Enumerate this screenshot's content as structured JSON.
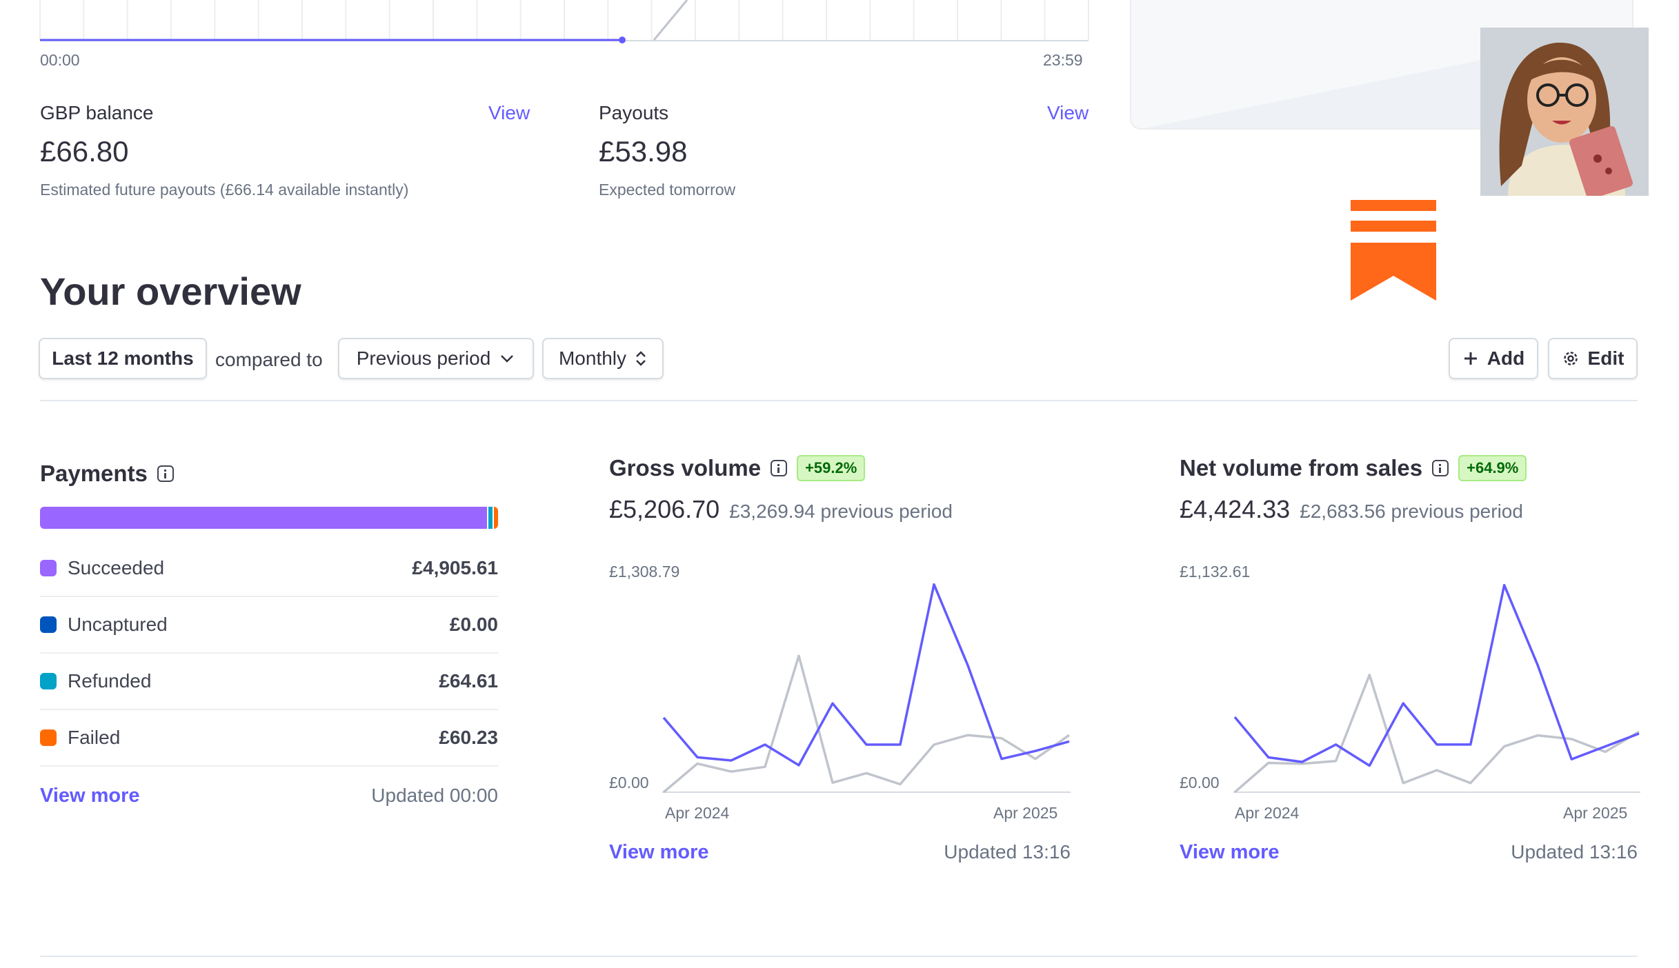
{
  "today": {
    "start_time": "00:00",
    "end_time": "23:59"
  },
  "gbp_balance": {
    "label": "GBP balance",
    "link": "View",
    "amount": "£66.80",
    "sub": "Estimated future payouts (£66.14 available instantly)"
  },
  "payouts": {
    "label": "Payouts",
    "link": "View",
    "amount": "£53.98",
    "sub": "Expected tomorrow"
  },
  "overview": {
    "title": "Your overview",
    "range_button": "Last 12 months",
    "compared_to": "compared to",
    "comparison_button": "Previous period",
    "interval_button": "Monthly",
    "add_button": "Add",
    "edit_button": "Edit"
  },
  "payments": {
    "title": "Payments",
    "rows": [
      {
        "label": "Succeeded",
        "value": "£4,905.61",
        "color": "#9966ff"
      },
      {
        "label": "Uncaptured",
        "value": "£0.00",
        "color": "#0055bc"
      },
      {
        "label": "Refunded",
        "value": "£64.61",
        "color": "#00a2c7"
      },
      {
        "label": "Failed",
        "value": "£60.23",
        "color": "#ff6a00"
      }
    ],
    "bar_shares": [
      4905.61,
      0,
      64.61,
      60.23
    ],
    "view_more": "View more",
    "updated": "Updated 00:00"
  },
  "gross_volume": {
    "title": "Gross volume",
    "badge": "+59.2%",
    "amount": "£5,206.70",
    "previous": "£3,269.94 previous period",
    "y_max_label": "£1,308.79",
    "y_min_label": "£0.00",
    "x_start_label": "Apr 2024",
    "x_end_label": "Apr 2025",
    "view_more": "View more",
    "updated": "Updated 13:16"
  },
  "net_volume": {
    "title": "Net volume from sales",
    "badge": "+64.9%",
    "amount": "£4,424.33",
    "previous": "£2,683.56 previous period",
    "y_max_label": "£1,132.61",
    "y_min_label": "£0.00",
    "x_start_label": "Apr 2024",
    "x_end_label": "Apr 2025",
    "view_more": "View more",
    "updated": "Updated 13:16"
  },
  "colors": {
    "accent": "#635bff",
    "current_series": "#635bff",
    "previous_series": "#c0c4cc",
    "positive_badge": "#d7f7c2",
    "brand_logo": "#ff6719"
  },
  "icons": [
    "info-icon",
    "chevron-down-icon",
    "chevron-updown-icon",
    "plus-icon",
    "gear-icon",
    "bookmark-logo-icon"
  ],
  "chart_data": [
    {
      "type": "line",
      "title": "Gross volume",
      "ylim": [
        0,
        1308.79
      ],
      "x_labels": [
        "Apr 2024",
        "Apr 2025"
      ],
      "series": [
        {
          "values": [
            470,
            220,
            200,
            300,
            170,
            560,
            300,
            300,
            1310,
            800,
            210,
            260,
            320
          ]
        },
        {
          "values": [
            0,
            180,
            130,
            160,
            860,
            60,
            120,
            50,
            300,
            360,
            340,
            210,
            360
          ]
        }
      ]
    },
    {
      "type": "line",
      "title": "Net volume from sales",
      "ylim": [
        0,
        1132.61
      ],
      "x_labels": [
        "Apr 2024",
        "Apr 2025"
      ],
      "series": [
        {
          "values": [
            410,
            190,
            165,
            260,
            145,
            485,
            260,
            260,
            1130,
            690,
            180,
            250,
            320
          ]
        },
        {
          "values": [
            0,
            160,
            155,
            170,
            640,
            50,
            120,
            50,
            250,
            310,
            290,
            220,
            330
          ]
        }
      ]
    }
  ]
}
